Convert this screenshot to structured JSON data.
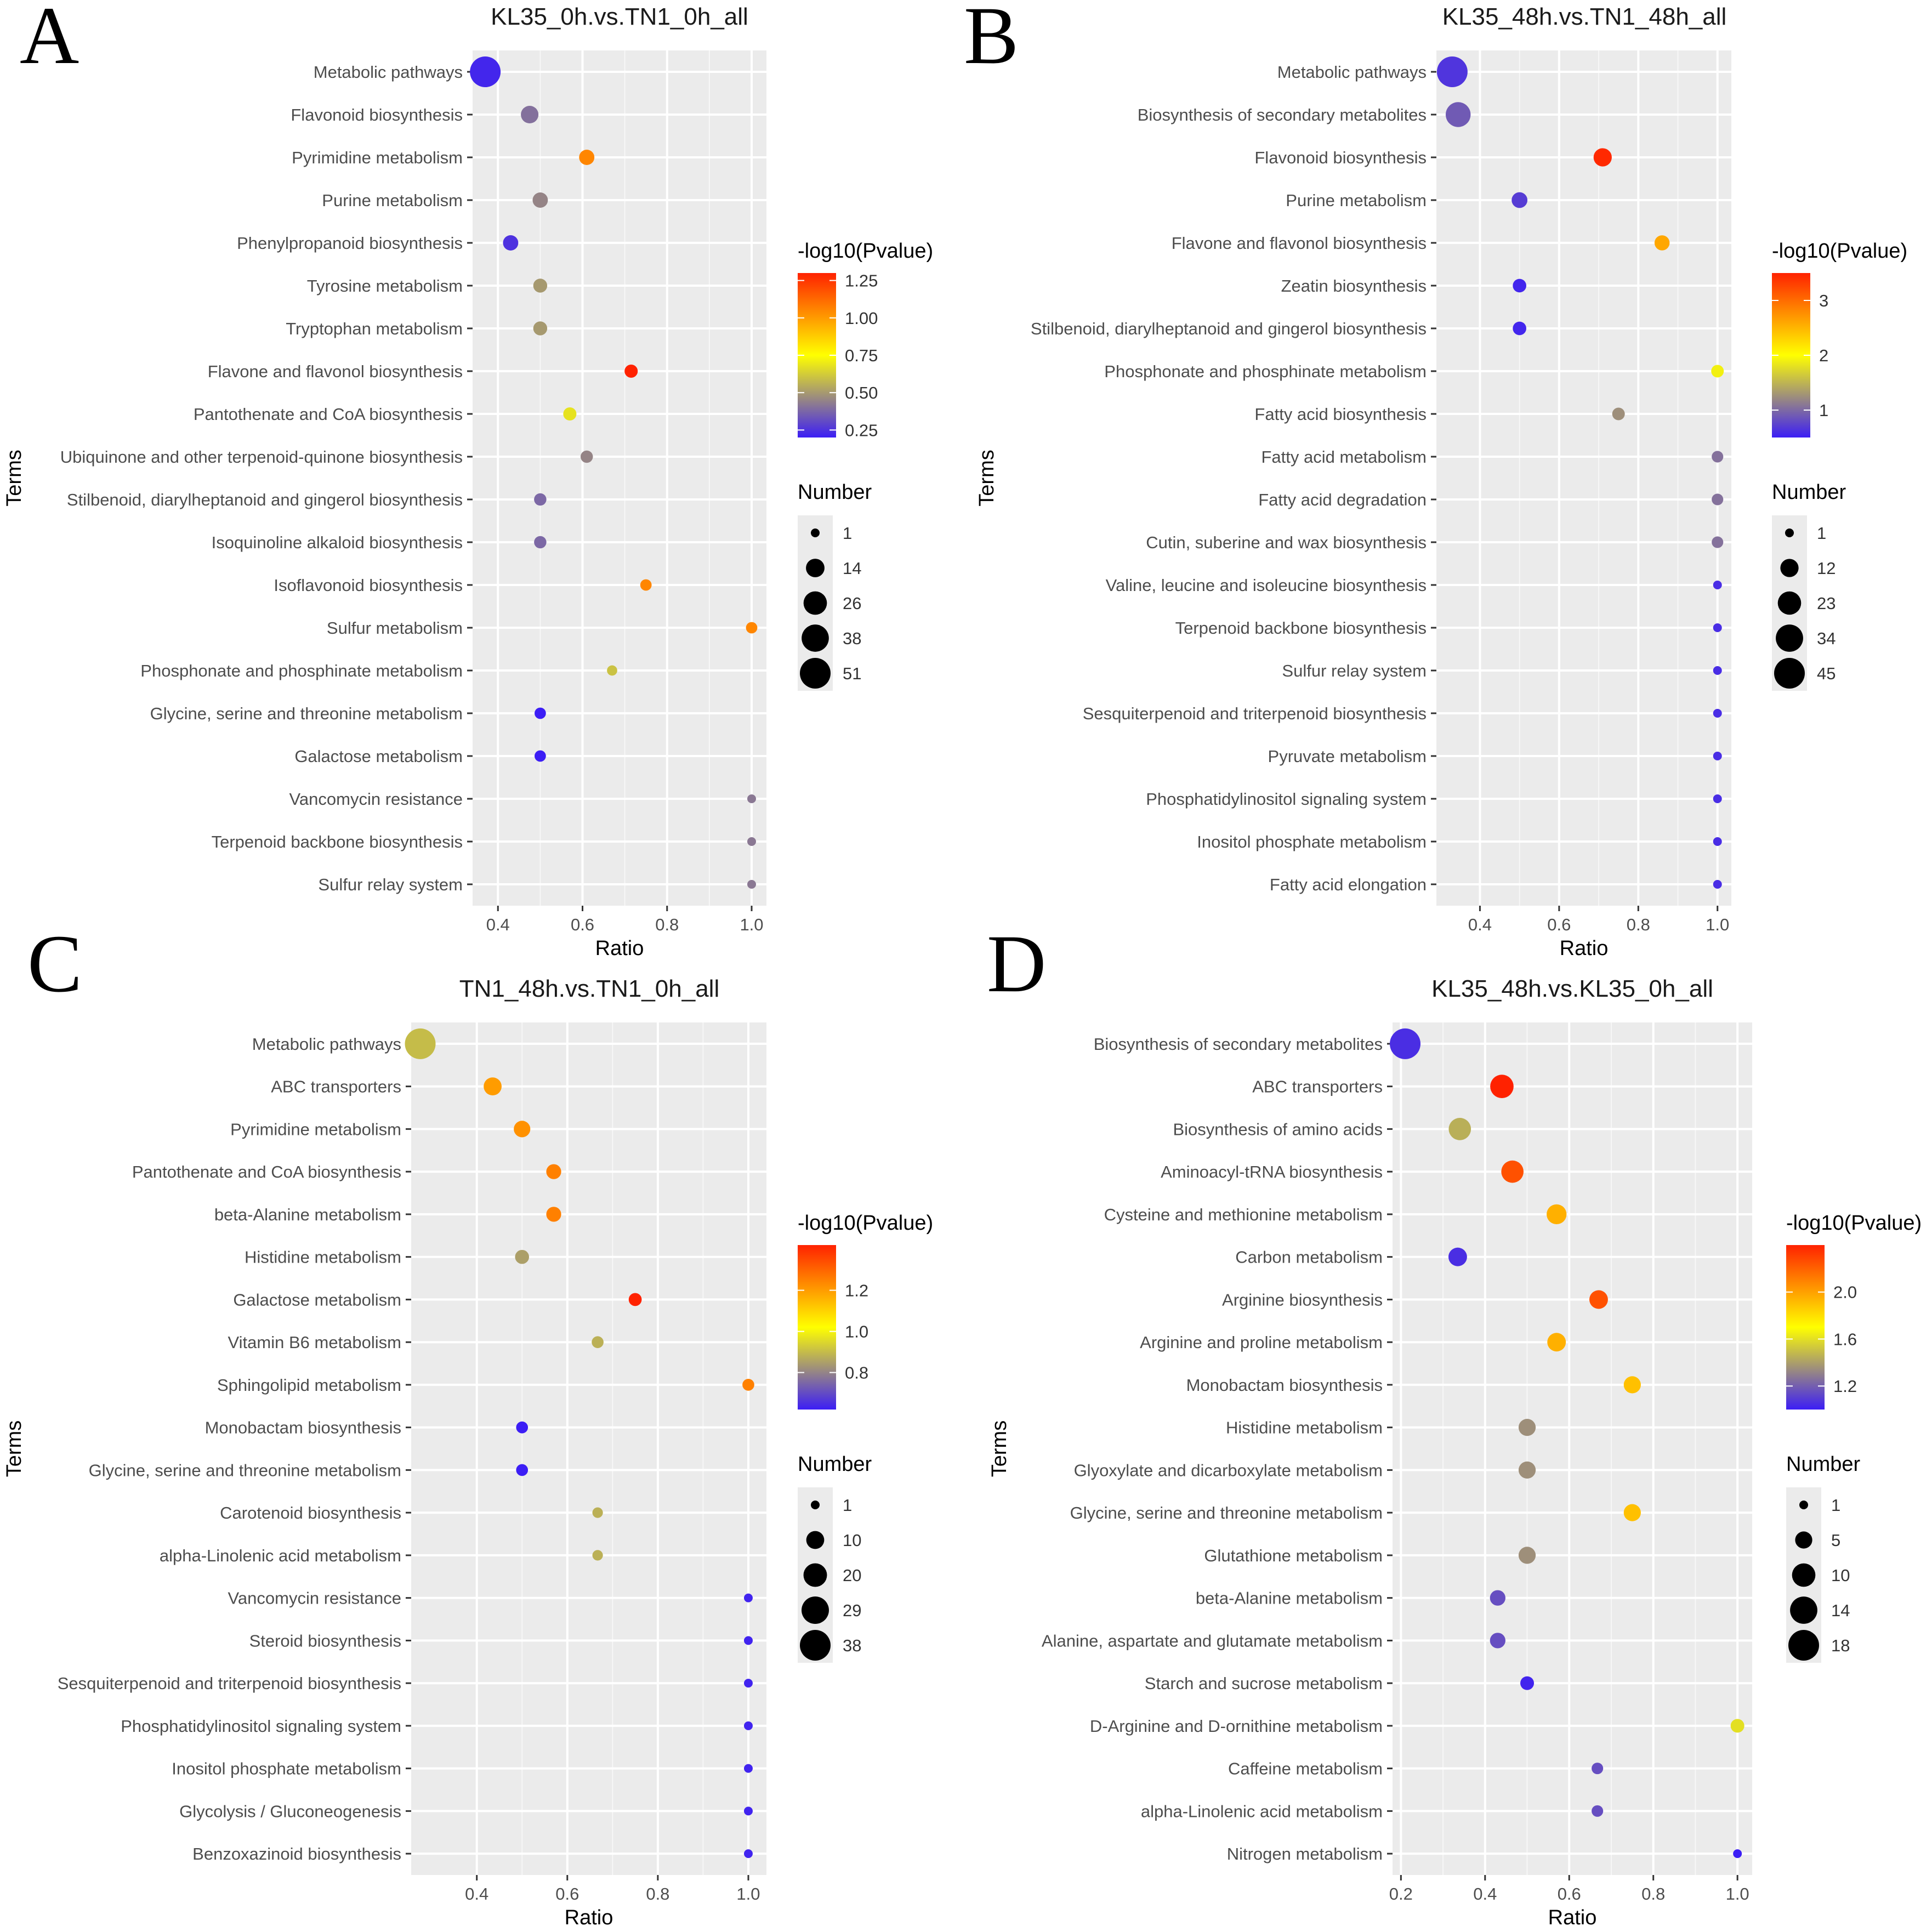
{
  "figure": {
    "y_axis_label": "Terms",
    "x_axis_label": "Ratio",
    "colorbar_title": "-log10(Pvalue)",
    "size_legend_title": "Number",
    "colors": {
      "panel_bg": "#EBEBEB",
      "grid": "#FFFFFF",
      "axis_text": "#4D4D4D",
      "title_text": "#1A1A1A",
      "scale_low": "#3C1EF5",
      "scale_mid": "#FFFF00",
      "scale_high": "#FF2200"
    }
  },
  "chart_data": [
    {
      "panel": "A",
      "type": "scatter",
      "title": "KL35_0h.vs.TN1_0h_all",
      "xlabel": "Ratio",
      "ylabel": "Terms",
      "xlim": [
        0.34,
        1.035
      ],
      "xticks": [
        0.4,
        0.6,
        0.8,
        1.0
      ],
      "xtick_labels": [
        "0.4",
        "0.6",
        "0.8",
        "1.0"
      ],
      "color_range": [
        0.2,
        1.3
      ],
      "color_ticks": [
        1.25,
        1.0,
        0.75,
        0.5,
        0.25
      ],
      "color_tick_labels": [
        "1.25",
        "1.00",
        "0.75",
        "0.50",
        "0.25"
      ],
      "size_range": [
        1,
        51
      ],
      "size_legend": [
        1,
        14,
        26,
        38,
        51
      ],
      "size_legend_labels": [
        "1",
        "14",
        "26",
        "38",
        "51"
      ],
      "terms": [
        "Metabolic pathways",
        "Flavonoid biosynthesis",
        "Pyrimidine metabolism",
        "Purine metabolism",
        "Phenylpropanoid biosynthesis",
        "Tyrosine metabolism",
        "Tryptophan metabolism",
        "Flavone and flavonol biosynthesis",
        "Pantothenate and CoA biosynthesis",
        "Ubiquinone and other terpenoid-quinone biosynthesis",
        "Stilbenoid, diarylheptanoid and gingerol biosynthesis",
        "Isoquinoline alkaloid biosynthesis",
        "Isoflavonoid biosynthesis",
        "Sulfur metabolism",
        "Phosphonate and phosphinate metabolism",
        "Glycine, serine and threonine metabolism",
        "Galactose metabolism",
        "Vancomycin resistance",
        "Terpenoid backbone biosynthesis",
        "Sulfur relay system"
      ],
      "ratio": [
        0.37,
        0.475,
        0.61,
        0.5,
        0.43,
        0.5,
        0.5,
        0.715,
        0.57,
        0.61,
        0.5,
        0.5,
        0.75,
        1.0,
        0.67,
        0.5,
        0.5,
        1.0,
        1.0,
        1.0
      ],
      "number": [
        51,
        12,
        8,
        8,
        8,
        6,
        6,
        5,
        5,
        4,
        4,
        4,
        3,
        3,
        2,
        3,
        3,
        1,
        1,
        1
      ],
      "neg_log10_p": [
        0.22,
        0.4,
        1.05,
        0.45,
        0.25,
        0.5,
        0.5,
        1.35,
        0.68,
        0.45,
        0.38,
        0.38,
        1.05,
        1.05,
        0.6,
        0.2,
        0.2,
        0.42,
        0.42,
        0.42
      ]
    },
    {
      "panel": "B",
      "type": "scatter",
      "title": "KL35_48h.vs.TN1_48h_all",
      "xlabel": "Ratio",
      "ylabel": "Terms",
      "xlim": [
        0.29,
        1.035
      ],
      "xticks": [
        0.4,
        0.6,
        0.8,
        1.0
      ],
      "xtick_labels": [
        "0.4",
        "0.6",
        "0.8",
        "1.0"
      ],
      "color_range": [
        0.5,
        3.5
      ],
      "color_ticks": [
        3,
        2,
        1
      ],
      "color_tick_labels": [
        "3",
        "2",
        "1"
      ],
      "size_range": [
        1,
        45
      ],
      "size_legend": [
        1,
        12,
        23,
        34,
        45
      ],
      "size_legend_labels": [
        "1",
        "12",
        "23",
        "34",
        "45"
      ],
      "terms": [
        "Metabolic pathways",
        "Biosynthesis of secondary metabolites",
        "Flavonoid biosynthesis",
        "Purine metabolism",
        "Flavone and flavonol biosynthesis",
        "Zeatin biosynthesis",
        "Stilbenoid, diarylheptanoid and gingerol biosynthesis",
        "Phosphonate and phosphinate metabolism",
        "Fatty acid biosynthesis",
        "Fatty acid metabolism",
        "Fatty acid degradation",
        "Cutin, suberine and wax biosynthesis",
        "Valine, leucine and isoleucine biosynthesis",
        "Terpenoid backbone biosynthesis",
        "Sulfur relay system",
        "Sesquiterpenoid and triterpenoid biosynthesis",
        "Pyruvate metabolism",
        "Phosphatidylinositol signaling system",
        "Inositol phosphate metabolism",
        "Fatty acid elongation"
      ],
      "ratio": [
        0.33,
        0.345,
        0.71,
        0.5,
        0.86,
        0.5,
        0.5,
        1.0,
        0.75,
        1.0,
        1.0,
        1.0,
        1.0,
        1.0,
        1.0,
        1.0,
        1.0,
        1.0,
        1.0,
        1.0
      ],
      "number": [
        45,
        27,
        12,
        8,
        7,
        5,
        5,
        4,
        4,
        3,
        3,
        3,
        1,
        1,
        1,
        1,
        1,
        1,
        1,
        1
      ],
      "neg_log10_p": [
        0.65,
        0.9,
        3.45,
        0.7,
        2.6,
        0.55,
        0.55,
        1.9,
        1.25,
        1.05,
        1.05,
        1.05,
        0.6,
        0.6,
        0.6,
        0.6,
        0.6,
        0.6,
        0.6,
        0.6
      ]
    },
    {
      "panel": "C",
      "type": "scatter",
      "title": "TN1_48h.vs.TN1_0h_all",
      "xlabel": "Ratio",
      "ylabel": "Terms",
      "xlim": [
        0.255,
        1.04
      ],
      "xticks": [
        0.4,
        0.6,
        0.8,
        1.0
      ],
      "xtick_labels": [
        "0.4",
        "0.6",
        "0.8",
        "1.0"
      ],
      "color_range": [
        0.62,
        1.42
      ],
      "color_ticks": [
        1.2,
        1.0,
        0.8
      ],
      "color_tick_labels": [
        "1.2",
        "1.0",
        "0.8"
      ],
      "size_range": [
        1,
        38
      ],
      "size_legend": [
        1,
        10,
        20,
        29,
        38
      ],
      "size_legend_labels": [
        "1",
        "10",
        "20",
        "29",
        "38"
      ],
      "terms": [
        "Metabolic pathways",
        "ABC transporters",
        "Pyrimidine metabolism",
        "Pantothenate and CoA biosynthesis",
        "beta-Alanine metabolism",
        "Histidine metabolism",
        "Galactose metabolism",
        "Vitamin B6 metabolism",
        "Sphingolipid metabolism",
        "Monobactam biosynthesis",
        "Glycine, serine and threonine metabolism",
        "Carotenoid biosynthesis",
        "alpha-Linolenic acid metabolism",
        "Vancomycin resistance",
        "Steroid biosynthesis",
        "Sesquiterpenoid and triterpenoid biosynthesis",
        "Phosphatidylinositol signaling system",
        "Inositol phosphate metabolism",
        "Glycolysis / Gluconeogenesis",
        "Benzoxazinoid biosynthesis"
      ],
      "ratio": [
        0.275,
        0.435,
        0.5,
        0.57,
        0.57,
        0.5,
        0.75,
        0.667,
        1.0,
        0.5,
        0.5,
        0.667,
        0.667,
        1.0,
        1.0,
        1.0,
        1.0,
        1.0,
        1.0,
        1.0
      ],
      "number": [
        38,
        10,
        8,
        6,
        6,
        5,
        4,
        3,
        3,
        3,
        3,
        2,
        2,
        1,
        1,
        1,
        1,
        1,
        1,
        1
      ],
      "neg_log10_p": [
        0.9,
        1.2,
        1.22,
        1.25,
        1.25,
        0.85,
        1.42,
        0.88,
        1.25,
        0.62,
        0.62,
        0.88,
        0.88,
        0.63,
        0.63,
        0.63,
        0.63,
        0.63,
        0.63,
        0.63
      ]
    },
    {
      "panel": "D",
      "type": "scatter",
      "title": "KL35_48h.vs.KL35_0h_all",
      "xlabel": "Ratio",
      "ylabel": "Terms",
      "xlim": [
        0.18,
        1.035
      ],
      "xticks": [
        0.2,
        0.4,
        0.6,
        0.8,
        1.0
      ],
      "xtick_labels": [
        "0.2",
        "0.4",
        "0.6",
        "0.8",
        "1.0"
      ],
      "color_range": [
        1.0,
        2.4
      ],
      "color_ticks": [
        2.0,
        1.6,
        1.2
      ],
      "color_tick_labels": [
        "2.0",
        "1.6",
        "1.2"
      ],
      "size_range": [
        1,
        18
      ],
      "size_legend": [
        1,
        5,
        10,
        14,
        18
      ],
      "size_legend_labels": [
        "1",
        "5",
        "10",
        "14",
        "18"
      ],
      "terms": [
        "Biosynthesis of secondary metabolites",
        "ABC transporters",
        "Biosynthesis of amino acids",
        "Aminoacyl-tRNA biosynthesis",
        "Cysteine and methionine metabolism",
        "Carbon metabolism",
        "Arginine biosynthesis",
        "Arginine and proline metabolism",
        "Monobactam biosynthesis",
        "Histidine metabolism",
        "Glyoxylate and dicarboxylate metabolism",
        "Glycine, serine and threonine metabolism",
        "Glutathione metabolism",
        "beta-Alanine metabolism",
        "Alanine, aspartate and glutamate metabolism",
        "Starch and sucrose metabolism",
        "D-Arginine and D-ornithine metabolism",
        "Caffeine metabolism",
        "alpha-Linolenic acid metabolism",
        "Nitrogen metabolism"
      ],
      "ratio": [
        0.21,
        0.44,
        0.34,
        0.465,
        0.57,
        0.335,
        0.67,
        0.57,
        0.75,
        0.5,
        0.5,
        0.75,
        0.5,
        0.43,
        0.43,
        0.5,
        1.0,
        0.667,
        0.667,
        1.0
      ],
      "number": [
        18,
        10,
        9,
        9,
        7,
        6,
        6,
        6,
        5,
        5,
        5,
        5,
        5,
        4,
        4,
        3,
        3,
        2,
        2,
        1
      ],
      "neg_log10_p": [
        1.05,
        2.4,
        1.45,
        2.25,
        1.95,
        1.05,
        2.25,
        1.95,
        1.9,
        1.35,
        1.35,
        1.9,
        1.35,
        1.15,
        1.15,
        1.02,
        1.6,
        1.15,
        1.15,
        1.0
      ]
    }
  ]
}
